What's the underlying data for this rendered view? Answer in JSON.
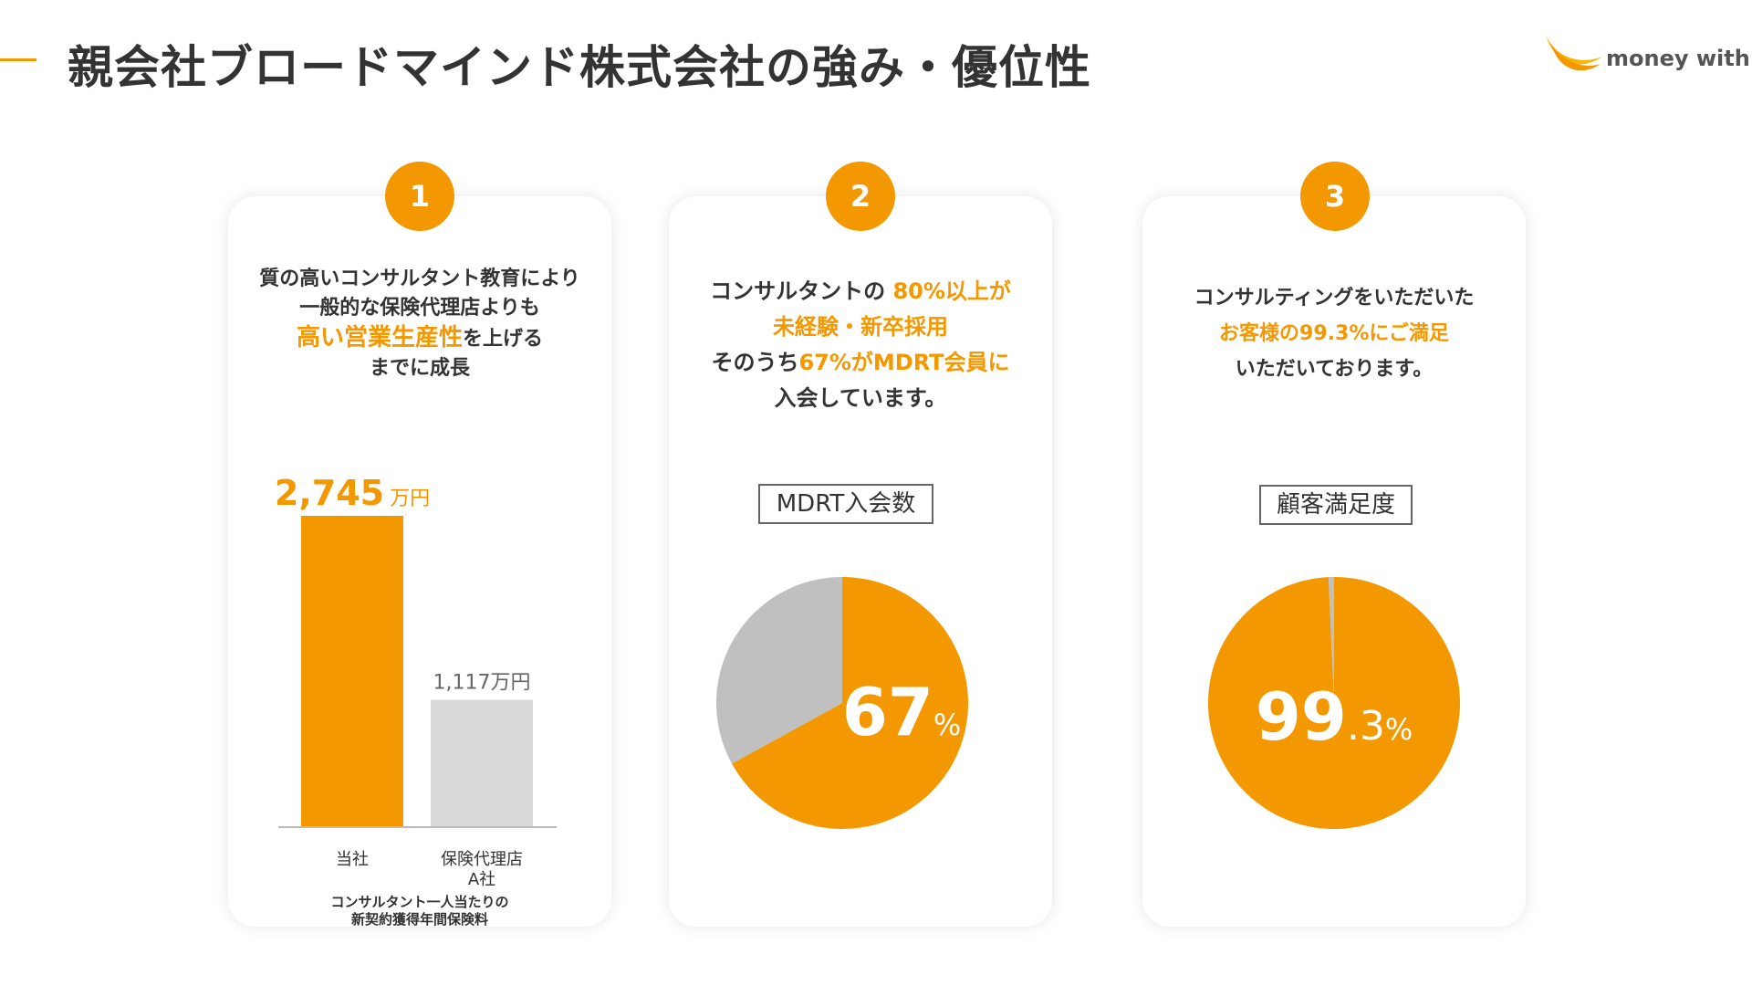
{
  "header": {
    "title": "親会社ブロードマインド株式会社の強み・優位性",
    "brand": "money with",
    "accent_color": "#f39800"
  },
  "cards": [
    {
      "badge": "1",
      "desc_parts": [
        [
          "質の高いコンサルタント教育により"
        ],
        [
          "一般的な保険代理店よりも"
        ],
        [
          "高い営業生産性",
          "を上げる"
        ],
        [
          "までに成長"
        ]
      ]
    },
    {
      "badge": "2",
      "desc_parts": [
        [
          "コンサルタントの ",
          "80%以上が"
        ],
        [
          "未経験・新卒採用"
        ],
        [
          "そのうち",
          "67%がMDRT会員に"
        ],
        [
          "入会しています。"
        ]
      ],
      "chart_label": "MDRT入会数"
    },
    {
      "badge": "3",
      "desc_parts": [
        [
          "コンサルティングをいただいた"
        ],
        [
          "お客様の99.3%にご満足"
        ],
        [
          "いただいております。"
        ]
      ],
      "chart_label": "顧客満足度"
    }
  ],
  "chart_data": [
    {
      "type": "bar",
      "categories": [
        "当社",
        "保険代理店\nA社"
      ],
      "values": [
        2745,
        1117
      ],
      "value_labels": [
        {
          "number": "2,745",
          "unit": "万円"
        },
        {
          "number": "1,117万円",
          "unit": ""
        }
      ],
      "colors": [
        "#f39800",
        "#d9d9d9"
      ],
      "xlabel": "コンサルタント一人当たりの\n新契約獲得年間保険料",
      "ylim": [
        0,
        2745
      ]
    },
    {
      "type": "pie",
      "title": "MDRT入会数",
      "slices": [
        {
          "value": 67,
          "color": "#f39800"
        },
        {
          "value": 33,
          "color": "#c0c0c0"
        }
      ],
      "center_label": {
        "number": "67",
        "unit": "%"
      }
    },
    {
      "type": "pie",
      "title": "顧客満足度",
      "slices": [
        {
          "value": 99.3,
          "color": "#f39800"
        },
        {
          "value": 0.7,
          "color": "#c0c0c0"
        }
      ],
      "center_label": {
        "number": "99",
        "decimal": ".3",
        "unit": "%"
      }
    }
  ]
}
